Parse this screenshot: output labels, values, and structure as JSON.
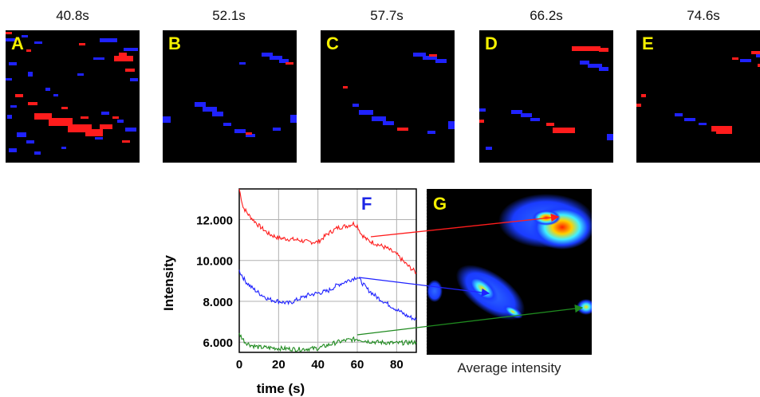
{
  "timestamps": [
    "40.8s",
    "52.1s",
    "57.7s",
    "66.2s",
    "74.6s"
  ],
  "panel_labels": [
    "A",
    "B",
    "C",
    "D",
    "E"
  ],
  "chart_label": "F",
  "gpanel_label": "G",
  "gpanel_caption": "Average intensity",
  "colors": {
    "red": "#ff1c1c",
    "blue": "#1f22ff",
    "green": "#1f8a1f",
    "label_yellow": "#f5f000",
    "label_blue": "#1d26e6"
  },
  "chart_data": {
    "type": "line",
    "xlabel": "time (s)",
    "ylabel": "Intensity",
    "xlim": [
      0,
      90
    ],
    "ylim": [
      5500,
      13500
    ],
    "xticks": [
      0,
      20,
      40,
      60,
      80
    ],
    "yticks": [
      6000,
      8000,
      10000,
      12000
    ],
    "ytick_labels": [
      "6.000",
      "8.000",
      "10.000",
      "12.000"
    ],
    "grid": true,
    "series": [
      {
        "color": "#ff1c1c",
        "x": [
          0,
          2,
          5,
          10,
          15,
          20,
          25,
          30,
          35,
          40,
          45,
          50,
          55,
          58,
          60,
          62,
          65,
          70,
          75,
          80,
          85,
          90
        ],
        "y": [
          13500,
          12600,
          12200,
          11700,
          11300,
          11100,
          11050,
          11000,
          10900,
          10900,
          11300,
          11600,
          11700,
          11800,
          11700,
          11300,
          11000,
          10800,
          10600,
          10300,
          9800,
          9400
        ]
      },
      {
        "color": "#1f22ff",
        "x": [
          0,
          3,
          6,
          10,
          15,
          20,
          25,
          30,
          35,
          40,
          45,
          50,
          55,
          60,
          65,
          70,
          75,
          80,
          85,
          90
        ],
        "y": [
          9500,
          9000,
          8700,
          8400,
          8100,
          8000,
          7900,
          8100,
          8300,
          8400,
          8500,
          8800,
          9000,
          9200,
          8600,
          8200,
          7900,
          7600,
          7300,
          7100
        ]
      },
      {
        "color": "#1f8a1f",
        "x": [
          0,
          3,
          6,
          10,
          20,
          30,
          40,
          45,
          50,
          55,
          60,
          65,
          70,
          80,
          90
        ],
        "y": [
          6400,
          6000,
          5850,
          5750,
          5700,
          5650,
          5700,
          5850,
          6000,
          6100,
          6150,
          6050,
          6000,
          5950,
          6000
        ]
      }
    ]
  }
}
